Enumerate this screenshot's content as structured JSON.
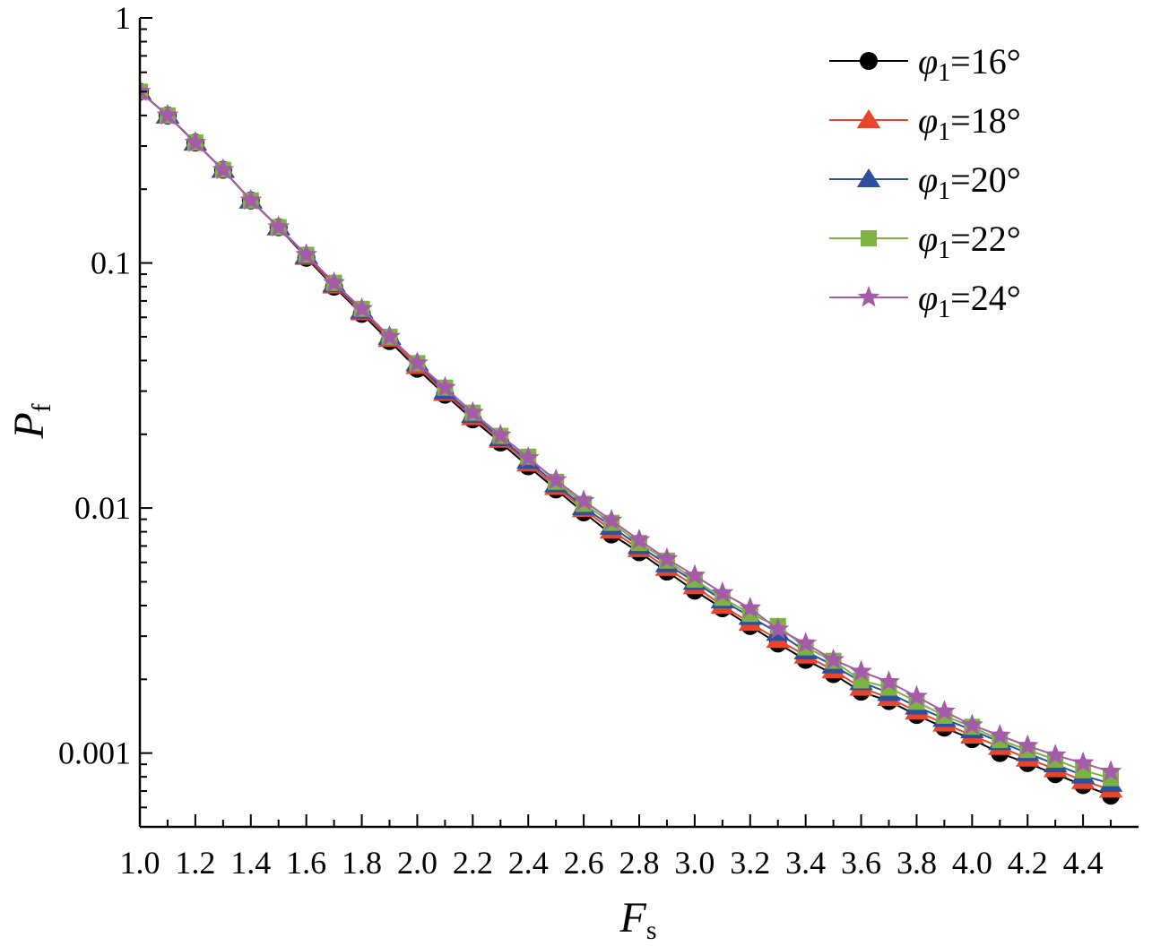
{
  "chart_data": {
    "type": "line",
    "title": "",
    "xlabel": {
      "main": "F",
      "sub": "s"
    },
    "ylabel": {
      "main": "P",
      "sub": "f"
    },
    "xlim": [
      1.0,
      4.6
    ],
    "ylim": [
      0.0005,
      1
    ],
    "yscale": "log",
    "xticks": [
      "1.0",
      "1.2",
      "1.4",
      "1.6",
      "1.8",
      "2.0",
      "2.2",
      "2.4",
      "2.6",
      "2.8",
      "3.0",
      "3.2",
      "3.4",
      "3.6",
      "3.8",
      "4.0",
      "4.2",
      "4.4"
    ],
    "yticks": [
      {
        "value": 1,
        "label": "1"
      },
      {
        "value": 0.1,
        "label": "0.1"
      },
      {
        "value": 0.01,
        "label": "0.01"
      },
      {
        "value": 0.001,
        "label": "0.001"
      }
    ],
    "x": [
      1.0,
      1.1,
      1.2,
      1.3,
      1.4,
      1.5,
      1.6,
      1.7,
      1.8,
      1.9,
      2.0,
      2.1,
      2.2,
      2.3,
      2.4,
      2.5,
      2.6,
      2.7,
      2.8,
      2.9,
      3.0,
      3.1,
      3.2,
      3.3,
      3.4,
      3.5,
      3.6,
      3.7,
      3.8,
      3.9,
      4.0,
      4.1,
      4.2,
      4.3,
      4.4,
      4.5
    ],
    "legend_position": "top-right",
    "grid": false,
    "series": [
      {
        "name": "=16°",
        "symbol": "φ",
        "subscript": "1",
        "color": "#000000",
        "marker": "circle",
        "values": [
          0.5,
          0.4,
          0.31,
          0.24,
          0.18,
          0.14,
          0.105,
          0.08,
          0.062,
          0.048,
          0.037,
          0.029,
          0.023,
          0.0185,
          0.0148,
          0.0119,
          0.0096,
          0.0078,
          0.0066,
          0.0055,
          0.0046,
          0.0039,
          0.0033,
          0.0028,
          0.0024,
          0.0021,
          0.00178,
          0.00163,
          0.00143,
          0.00127,
          0.00114,
          0.001,
          0.00091,
          0.00082,
          0.00074,
          0.00067
        ]
      },
      {
        "name": "=18°",
        "symbol": "φ",
        "subscript": "1",
        "color": "#e8452a",
        "marker": "triangle",
        "values": [
          0.5,
          0.4,
          0.31,
          0.24,
          0.18,
          0.14,
          0.106,
          0.081,
          0.063,
          0.049,
          0.038,
          0.0295,
          0.0235,
          0.019,
          0.0152,
          0.0122,
          0.0099,
          0.0081,
          0.0068,
          0.0057,
          0.0048,
          0.004,
          0.0034,
          0.0029,
          0.0025,
          0.00218,
          0.00185,
          0.00168,
          0.00148,
          0.00132,
          0.00118,
          0.00106,
          0.00095,
          0.00086,
          0.00077,
          0.00071
        ]
      },
      {
        "name": "=20°",
        "symbol": "φ",
        "subscript": "1",
        "color": "#2e4e9e",
        "marker": "triangle",
        "values": [
          0.5,
          0.4,
          0.31,
          0.24,
          0.18,
          0.14,
          0.107,
          0.082,
          0.064,
          0.05,
          0.039,
          0.03,
          0.024,
          0.0193,
          0.0156,
          0.0125,
          0.0101,
          0.0084,
          0.007,
          0.0059,
          0.005,
          0.0042,
          0.0036,
          0.0031,
          0.0026,
          0.00228,
          0.00195,
          0.00176,
          0.00155,
          0.00138,
          0.00124,
          0.00111,
          0.001,
          0.0009,
          0.00081,
          0.00075
        ]
      },
      {
        "name": "=22°",
        "symbol": "φ",
        "subscript": "1",
        "color": "#7cb342",
        "marker": "square",
        "values": [
          0.5,
          0.4,
          0.31,
          0.24,
          0.18,
          0.14,
          0.108,
          0.083,
          0.065,
          0.05,
          0.039,
          0.031,
          0.0245,
          0.0197,
          0.0162,
          0.0128,
          0.0104,
          0.0087,
          0.0072,
          0.0061,
          0.0051,
          0.0043,
          0.0037,
          0.0033,
          0.0027,
          0.00238,
          0.00198,
          0.00185,
          0.00162,
          0.00142,
          0.00128,
          0.00113,
          0.00103,
          0.00094,
          0.00085,
          0.00079
        ]
      },
      {
        "name": "=24°",
        "symbol": "φ",
        "subscript": "1",
        "color": "#a55ca8",
        "marker": "star",
        "values": [
          0.5,
          0.4,
          0.31,
          0.24,
          0.18,
          0.14,
          0.108,
          0.083,
          0.065,
          0.05,
          0.039,
          0.031,
          0.0245,
          0.0198,
          0.016,
          0.013,
          0.0107,
          0.0089,
          0.0074,
          0.0062,
          0.0053,
          0.0045,
          0.0039,
          0.0032,
          0.0028,
          0.0024,
          0.00215,
          0.00195,
          0.0017,
          0.00148,
          0.0013,
          0.00118,
          0.00107,
          0.00098,
          0.00091,
          0.00084
        ]
      }
    ]
  }
}
